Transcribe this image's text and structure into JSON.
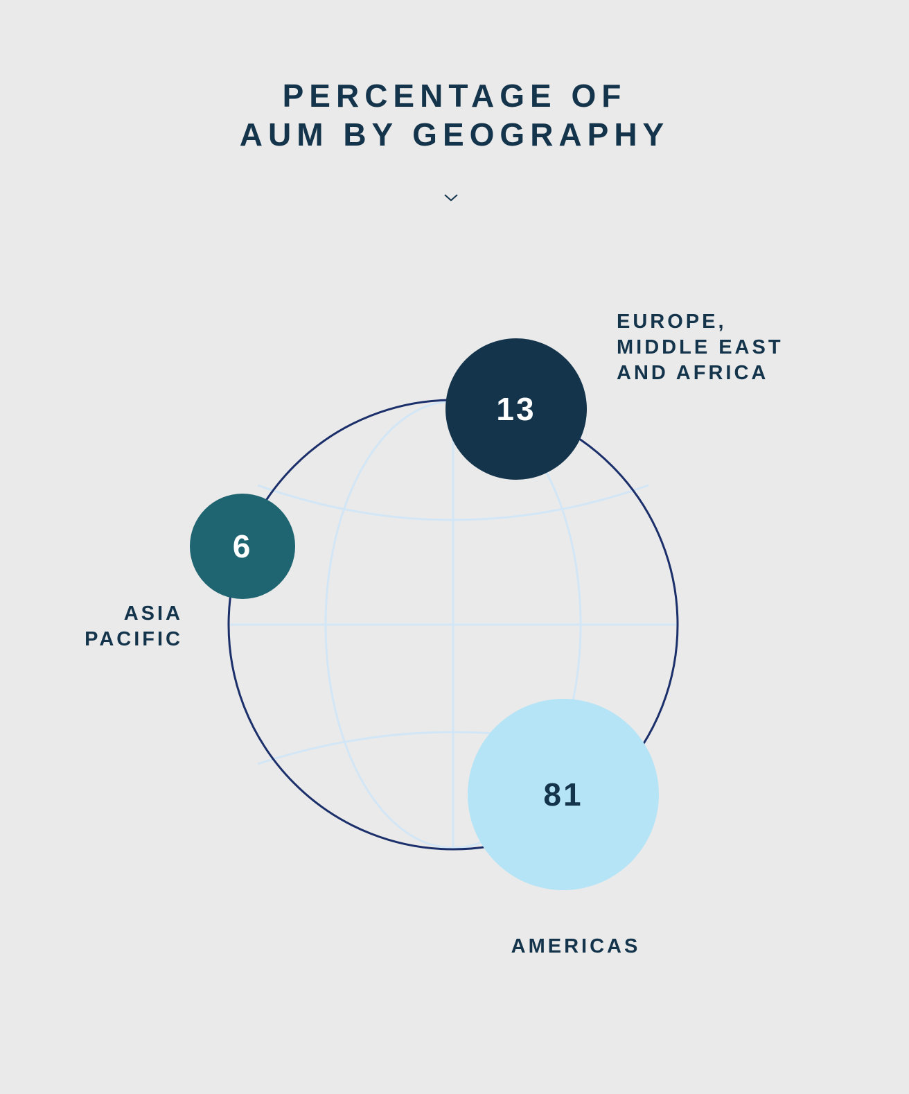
{
  "title": {
    "line1": "PERCENTAGE OF",
    "line2": "AUM BY GEOGRAPHY"
  },
  "icons": {
    "scroll": "chevron-down-icon"
  },
  "colors": {
    "background": "#eaeaea",
    "text": "#14344c",
    "globe_outline": "#1b2f6a",
    "globe_grid": "#d3e6f5"
  },
  "chart_data": {
    "type": "bubble",
    "title": "PERCENTAGE OF AUM BY GEOGRAPHY",
    "unit": "%",
    "series": [
      {
        "name": "EUROPE, MIDDLE EAST AND AFRICA",
        "label_lines": [
          "EUROPE,",
          "MIDDLE EAST",
          "AND AFRICA"
        ],
        "value": 13,
        "color": "#14344c",
        "text_color": "#ffffff"
      },
      {
        "name": "ASIA PACIFIC",
        "label_lines": [
          "ASIA",
          "PACIFIC"
        ],
        "value": 6,
        "color": "#1e6471",
        "text_color": "#ffffff"
      },
      {
        "name": "AMERICAS",
        "label_lines": [
          "AMERICAS"
        ],
        "value": 81,
        "color": "#b6e4f7",
        "text_color": "#14344c"
      }
    ]
  }
}
